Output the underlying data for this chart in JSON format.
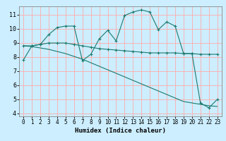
{
  "title": "",
  "xlabel": "Humidex (Indice chaleur)",
  "bg_color": "#cceeff",
  "grid_color": "#ffaaaa",
  "line_color": "#1a7a6e",
  "xlim": [
    -0.5,
    23.5
  ],
  "ylim": [
    3.8,
    11.6
  ],
  "yticks": [
    4,
    5,
    6,
    7,
    8,
    9,
    10,
    11
  ],
  "xticks": [
    0,
    1,
    2,
    3,
    4,
    5,
    6,
    7,
    8,
    9,
    10,
    11,
    12,
    13,
    14,
    15,
    16,
    17,
    18,
    19,
    20,
    21,
    22,
    23
  ],
  "line1_x": [
    0,
    1,
    2,
    3,
    4,
    5,
    6,
    7,
    8,
    9,
    10,
    11,
    12,
    13,
    14,
    15,
    16,
    17,
    18,
    19,
    20,
    21,
    22,
    23
  ],
  "line1_y": [
    7.8,
    8.8,
    8.9,
    9.6,
    10.1,
    10.2,
    10.2,
    7.75,
    8.2,
    9.3,
    9.9,
    9.15,
    10.95,
    11.2,
    11.35,
    11.2,
    9.95,
    10.5,
    10.2,
    8.25,
    8.25,
    4.75,
    4.4,
    5.0
  ],
  "line2_x": [
    0,
    1,
    2,
    3,
    4,
    5,
    6,
    7,
    8,
    9,
    10,
    11,
    12,
    13,
    14,
    15,
    16,
    17,
    18,
    19,
    20,
    21,
    22,
    23
  ],
  "line2_y": [
    8.8,
    8.8,
    8.9,
    9.0,
    9.0,
    9.0,
    8.9,
    8.8,
    8.7,
    8.6,
    8.55,
    8.5,
    8.45,
    8.4,
    8.35,
    8.3,
    8.3,
    8.3,
    8.3,
    8.25,
    8.25,
    8.2,
    8.2,
    8.2
  ],
  "line3_x": [
    0,
    1,
    2,
    3,
    4,
    5,
    6,
    7,
    8,
    9,
    10,
    11,
    12,
    13,
    14,
    15,
    16,
    17,
    18,
    19,
    20,
    21,
    22,
    23
  ],
  "line3_y": [
    8.8,
    8.75,
    8.65,
    8.55,
    8.4,
    8.25,
    8.05,
    7.85,
    7.6,
    7.35,
    7.1,
    6.85,
    6.6,
    6.35,
    6.1,
    5.85,
    5.6,
    5.35,
    5.1,
    4.85,
    4.75,
    4.65,
    4.55,
    4.5
  ]
}
